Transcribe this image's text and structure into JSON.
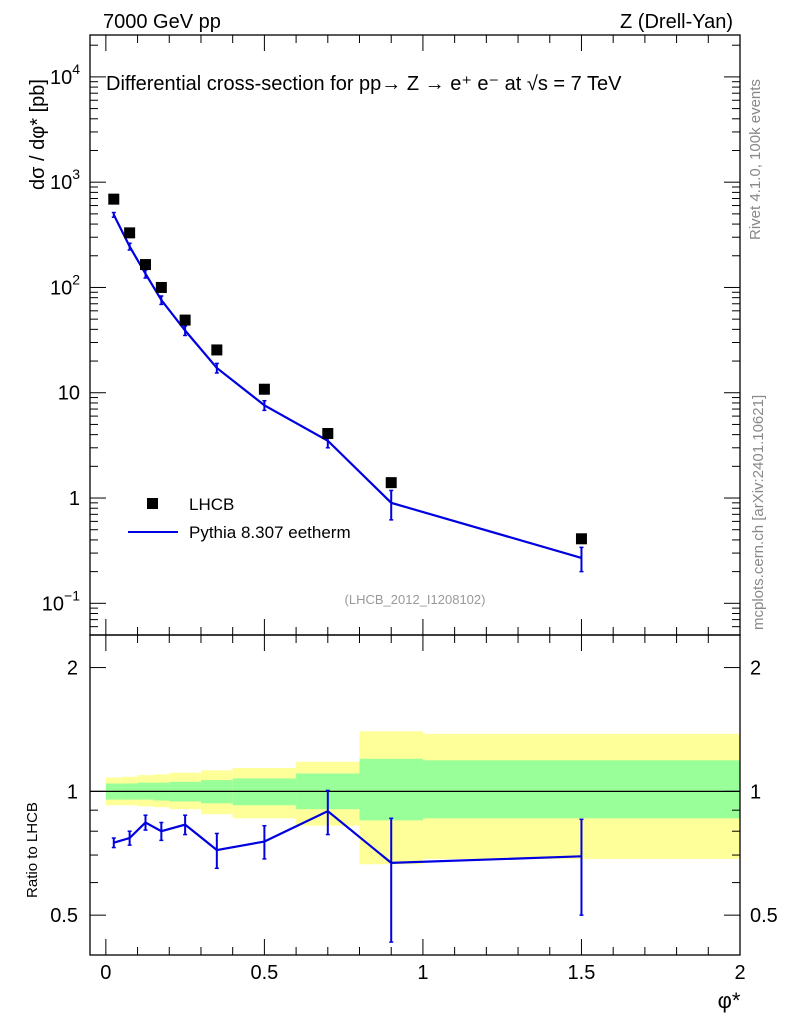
{
  "header": {
    "left": "7000 GeV pp",
    "right": "Z (Drell-Yan)"
  },
  "side_labels": {
    "rivet": "Rivet 4.1.0,  100k events",
    "mcplots": "mcplots.cern.ch [arXiv:2401.10621]"
  },
  "colors": {
    "data_marker": "#000000",
    "mc_line": "#0000e0",
    "band_inner": "#99ff99",
    "band_outer": "#ffff99"
  },
  "chart_data": [
    {
      "type": "scatter",
      "panel": "main",
      "title": "Differential cross-section for pp→  Z →  e⁺ e⁻ at √s = 7 TeV",
      "ylabel": "dσ / dφ* [pb]",
      "xlabel": "",
      "yscale": "log",
      "ylim": [
        0.05,
        25000
      ],
      "xlim": [
        -0.05,
        2.0
      ],
      "y_tick_labels": [
        {
          "value": 0.1,
          "base": "10",
          "exp": "−1"
        },
        {
          "value": 1,
          "base": "1",
          "exp": ""
        },
        {
          "value": 10,
          "base": "10",
          "exp": ""
        },
        {
          "value": 100,
          "base": "10",
          "exp": "2"
        },
        {
          "value": 1000,
          "base": "10",
          "exp": "3"
        },
        {
          "value": 10000,
          "base": "10",
          "exp": "4"
        }
      ],
      "legend": {
        "placement": "bottom-left",
        "entries": [
          {
            "label": "LHCB",
            "kind": "marker"
          },
          {
            "label": "Pythia 8.307 eetherm",
            "kind": "line"
          }
        ]
      },
      "watermark": "(LHCB_2012_I1208102)",
      "series": [
        {
          "name": "LHCB",
          "x": [
            0.025,
            0.075,
            0.125,
            0.175,
            0.25,
            0.35,
            0.5,
            0.7,
            0.9,
            1.5
          ],
          "values": [
            690,
            330,
            165,
            100,
            49,
            25.5,
            10.8,
            4.1,
            1.4,
            0.41
          ]
        },
        {
          "name": "Pythia 8.307 eetherm",
          "x": [
            0.025,
            0.075,
            0.125,
            0.175,
            0.25,
            0.35,
            0.5,
            0.7,
            0.9,
            1.5
          ],
          "values": [
            490,
            245,
            135,
            76,
            39,
            17.2,
            7.6,
            3.5,
            0.9,
            0.27
          ],
          "err_up": [
            25,
            18,
            12,
            7,
            4,
            1.8,
            0.8,
            0.5,
            0.28,
            0.07
          ],
          "err_down": [
            25,
            18,
            12,
            7,
            4,
            1.8,
            0.8,
            0.5,
            0.28,
            0.07
          ]
        }
      ]
    },
    {
      "type": "line",
      "panel": "ratio",
      "ylabel": "Ratio to LHCB",
      "xlabel": "φ*",
      "yscale": "log",
      "ylim": [
        0.4,
        2.4
      ],
      "xlim": [
        -0.05,
        2.0
      ],
      "x_tick_labels": [
        "0",
        "0.5",
        "1",
        "1.5",
        "2"
      ],
      "x_ticks": [
        0,
        0.5,
        1,
        1.5,
        2
      ],
      "y_tick_labels": [
        "0.5",
        "1",
        "2"
      ],
      "y_ticks": [
        0.5,
        1,
        2
      ],
      "reference_line": 1,
      "bins": [
        {
          "x0": 0.0,
          "x1": 0.05,
          "inner": [
            0.955,
            1.045
          ],
          "outer": [
            0.925,
            1.08
          ]
        },
        {
          "x0": 0.05,
          "x1": 0.1,
          "inner": [
            0.955,
            1.045
          ],
          "outer": [
            0.925,
            1.085
          ]
        },
        {
          "x0": 0.1,
          "x1": 0.15,
          "inner": [
            0.955,
            1.05
          ],
          "outer": [
            0.92,
            1.095
          ]
        },
        {
          "x0": 0.15,
          "x1": 0.2,
          "inner": [
            0.95,
            1.05
          ],
          "outer": [
            0.915,
            1.1
          ]
        },
        {
          "x0": 0.2,
          "x1": 0.3,
          "inner": [
            0.945,
            1.055
          ],
          "outer": [
            0.905,
            1.11
          ]
        },
        {
          "x0": 0.3,
          "x1": 0.4,
          "inner": [
            0.935,
            1.065
          ],
          "outer": [
            0.88,
            1.125
          ]
        },
        {
          "x0": 0.4,
          "x1": 0.6,
          "inner": [
            0.925,
            1.075
          ],
          "outer": [
            0.86,
            1.14
          ]
        },
        {
          "x0": 0.6,
          "x1": 0.8,
          "inner": [
            0.905,
            1.105
          ],
          "outer": [
            0.825,
            1.18
          ]
        },
        {
          "x0": 0.8,
          "x1": 1.0,
          "inner": [
            0.85,
            1.2
          ],
          "outer": [
            0.665,
            1.4
          ]
        },
        {
          "x0": 1.0,
          "x1": 2.0,
          "inner": [
            0.86,
            1.19
          ],
          "outer": [
            0.685,
            1.38
          ]
        }
      ],
      "series": [
        {
          "name": "Pythia 8.307 eetherm / LHCB",
          "x": [
            0.025,
            0.075,
            0.125,
            0.175,
            0.25,
            0.35,
            0.5,
            0.7,
            0.9,
            1.5
          ],
          "values": [
            0.75,
            0.77,
            0.84,
            0.8,
            0.83,
            0.72,
            0.755,
            0.895,
            0.67,
            0.695
          ],
          "err_up": [
            0.02,
            0.03,
            0.035,
            0.04,
            0.045,
            0.07,
            0.07,
            0.11,
            0.19,
            0.16
          ],
          "err_down": [
            0.02,
            0.03,
            0.035,
            0.04,
            0.045,
            0.07,
            0.07,
            0.11,
            0.24,
            0.195
          ]
        }
      ]
    }
  ]
}
